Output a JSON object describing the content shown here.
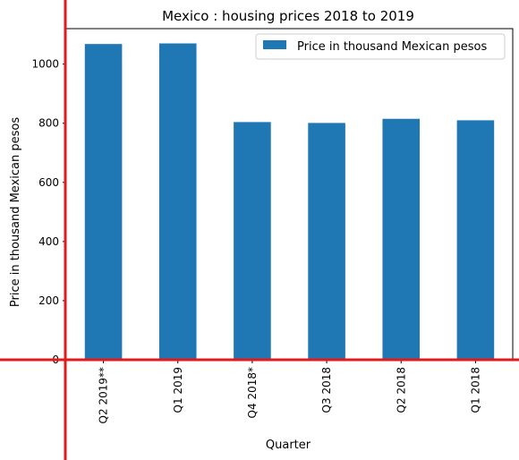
{
  "chart_data": {
    "type": "bar",
    "title": "Mexico : housing prices 2018 to 2019",
    "xlabel": "Quarter",
    "ylabel": "Price in thousand Mexican pesos",
    "categories": [
      "Q2 2019**",
      "Q1 2019",
      "Q4 2018*",
      "Q3 2018",
      "Q2 2018",
      "Q1 2018"
    ],
    "series": [
      {
        "name": "Price in thousand Mexican pesos",
        "values": [
          1068,
          1070,
          804,
          801,
          815,
          810
        ],
        "color": "#1f77b4"
      }
    ],
    "yticks": [
      0,
      200,
      400,
      600,
      800,
      1000
    ],
    "ylim": [
      0,
      1120
    ],
    "grid": false,
    "legend_position": "top-right",
    "x_tick_rotation": "vertical"
  },
  "colors": {
    "bar": "#1f77b4",
    "axis_overlay": "#e31a1c"
  }
}
